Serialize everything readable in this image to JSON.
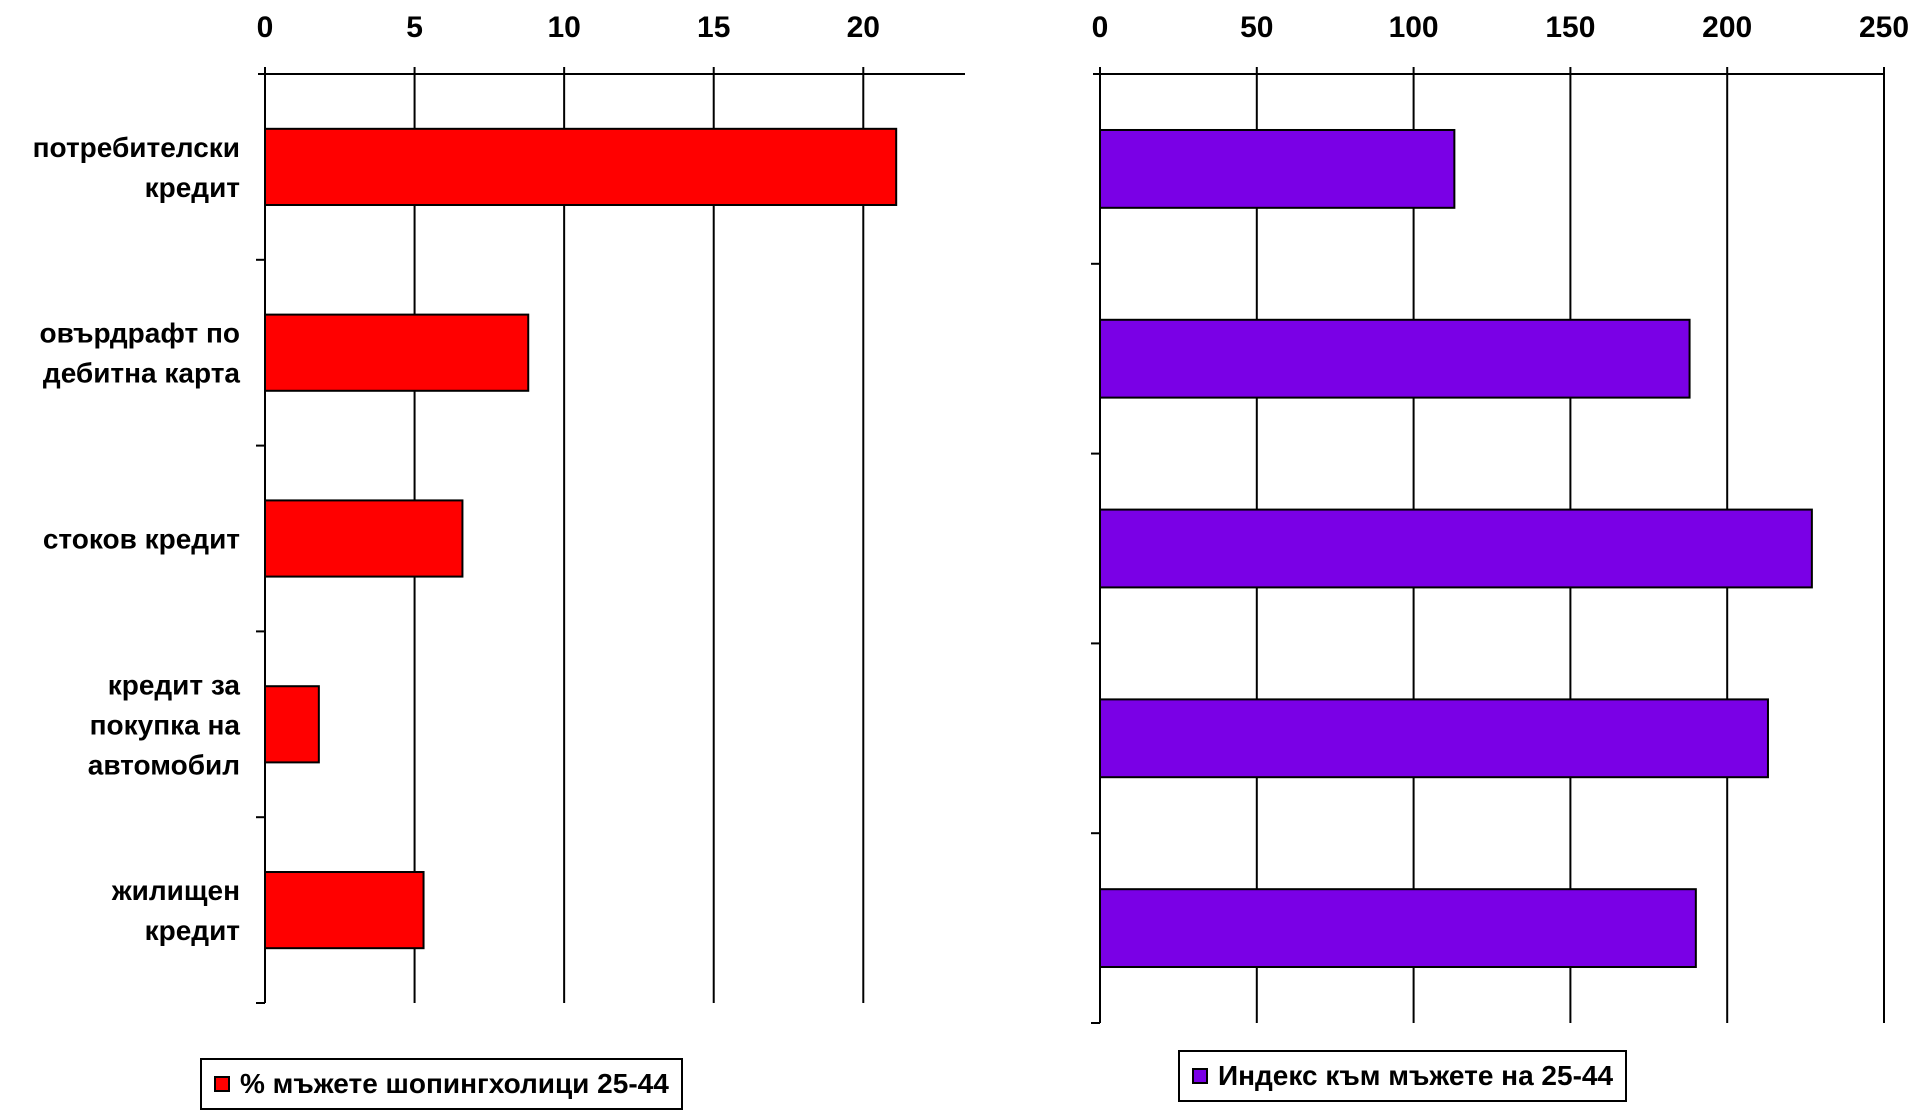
{
  "chart_data": [
    {
      "type": "bar",
      "orientation": "horizontal",
      "categories": [
        [
          "потребителски",
          "кредит"
        ],
        [
          "овърдрафт по",
          "дебитна карта"
        ],
        [
          "стоков кредит"
        ],
        [
          "кредит за",
          "покупка на",
          "автомобил"
        ],
        [
          "жилищен",
          "кредит"
        ]
      ],
      "series": [
        {
          "name": "% мъжете шопингхолици 25-44",
          "values": [
            21.1,
            8.8,
            6.6,
            1.8,
            5.3
          ],
          "color": "#ff0000"
        }
      ],
      "xlim": [
        0,
        23.4
      ],
      "xticks": [
        0,
        5,
        10,
        15,
        20
      ],
      "x_axis_position": "top",
      "grid": true,
      "legend": "bottom"
    },
    {
      "type": "bar",
      "orientation": "horizontal",
      "categories": [
        [
          "потребителски",
          "кредит"
        ],
        [
          "овърдрафт по",
          "дебитна карта"
        ],
        [
          "стоков кредит"
        ],
        [
          "кредит за",
          "покупка на",
          "автомобил"
        ],
        [
          "жилищен",
          "кредит"
        ]
      ],
      "series": [
        {
          "name": "Индекс към мъжете на 25-44",
          "values": [
            113,
            188,
            227,
            213,
            190
          ],
          "color": "#7a00e6"
        }
      ],
      "xlim": [
        0,
        250
      ],
      "xticks": [
        0,
        50,
        100,
        150,
        200,
        250
      ],
      "x_axis_position": "top",
      "grid": true,
      "legend": "bottom"
    }
  ]
}
